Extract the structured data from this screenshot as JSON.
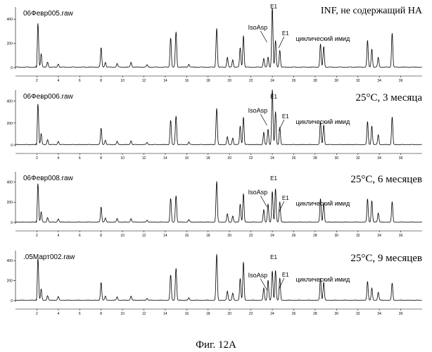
{
  "figure_caption": "Фиг. 12А",
  "chart_data": [
    {
      "type": "line",
      "file_label": "06Февр005.raw",
      "condition_label": "INF, не содержащий НА",
      "annotations": [
        "IsoAsp",
        "E1",
        "E1",
        "циклический имид"
      ],
      "y_ticks": [
        "400",
        "200",
        "0"
      ],
      "x_ticks": [
        "2",
        "4",
        "6",
        "8",
        "10",
        "12",
        "14",
        "16",
        "18",
        "20",
        "22",
        "24",
        "26",
        "28",
        "30",
        "32",
        "34",
        "36"
      ],
      "xlim": [
        0,
        38
      ],
      "ylim": [
        0,
        500
      ],
      "peaks": [
        {
          "x": 2.1,
          "y": 360
        },
        {
          "x": 2.4,
          "y": 110
        },
        {
          "x": 3.0,
          "y": 40
        },
        {
          "x": 4.0,
          "y": 25
        },
        {
          "x": 8.0,
          "y": 160
        },
        {
          "x": 8.4,
          "y": 40
        },
        {
          "x": 9.5,
          "y": 30
        },
        {
          "x": 10.8,
          "y": 40
        },
        {
          "x": 12.3,
          "y": 20
        },
        {
          "x": 14.5,
          "y": 240
        },
        {
          "x": 15.0,
          "y": 290
        },
        {
          "x": 16.2,
          "y": 25
        },
        {
          "x": 18.8,
          "y": 320
        },
        {
          "x": 19.8,
          "y": 80
        },
        {
          "x": 20.3,
          "y": 60
        },
        {
          "x": 21.0,
          "y": 160
        },
        {
          "x": 21.3,
          "y": 260
        },
        {
          "x": 23.2,
          "y": 70
        },
        {
          "x": 23.6,
          "y": 80
        },
        {
          "x": 24.0,
          "y": 490
        },
        {
          "x": 24.3,
          "y": 220
        },
        {
          "x": 24.7,
          "y": 140
        },
        {
          "x": 28.5,
          "y": 190
        },
        {
          "x": 28.8,
          "y": 170
        },
        {
          "x": 32.9,
          "y": 220
        },
        {
          "x": 33.3,
          "y": 150
        },
        {
          "x": 33.9,
          "y": 80
        },
        {
          "x": 35.2,
          "y": 280
        }
      ]
    },
    {
      "type": "line",
      "file_label": "06Февр006.raw",
      "condition_label": "25°C, 3 месяца",
      "annotations": [
        "IsoAsp",
        "E1",
        "E1",
        "циклический имид"
      ],
      "y_ticks": [
        "400",
        "200",
        "0"
      ],
      "x_ticks": [
        "2",
        "4",
        "6",
        "8",
        "10",
        "12",
        "14",
        "16",
        "18",
        "20",
        "22",
        "24",
        "26",
        "28",
        "30",
        "32",
        "34",
        "36"
      ],
      "xlim": [
        0,
        38
      ],
      "ylim": [
        0,
        500
      ],
      "peaks": [
        {
          "x": 2.1,
          "y": 370
        },
        {
          "x": 2.4,
          "y": 100
        },
        {
          "x": 3.0,
          "y": 45
        },
        {
          "x": 4.0,
          "y": 30
        },
        {
          "x": 8.0,
          "y": 150
        },
        {
          "x": 8.4,
          "y": 40
        },
        {
          "x": 9.5,
          "y": 30
        },
        {
          "x": 10.8,
          "y": 35
        },
        {
          "x": 12.3,
          "y": 20
        },
        {
          "x": 14.5,
          "y": 220
        },
        {
          "x": 15.0,
          "y": 260
        },
        {
          "x": 16.2,
          "y": 25
        },
        {
          "x": 18.8,
          "y": 330
        },
        {
          "x": 19.8,
          "y": 70
        },
        {
          "x": 20.3,
          "y": 60
        },
        {
          "x": 21.0,
          "y": 170
        },
        {
          "x": 21.3,
          "y": 250
        },
        {
          "x": 23.2,
          "y": 110
        },
        {
          "x": 23.6,
          "y": 140
        },
        {
          "x": 24.0,
          "y": 500
        },
        {
          "x": 24.3,
          "y": 300
        },
        {
          "x": 24.7,
          "y": 160
        },
        {
          "x": 28.5,
          "y": 210
        },
        {
          "x": 28.8,
          "y": 180
        },
        {
          "x": 32.9,
          "y": 210
        },
        {
          "x": 33.3,
          "y": 170
        },
        {
          "x": 33.9,
          "y": 90
        },
        {
          "x": 35.2,
          "y": 250
        }
      ]
    },
    {
      "type": "line",
      "file_label": "06Февр008.raw",
      "condition_label": "25°C, 6 месяцев",
      "annotations": [
        "IsoAsp",
        "E1",
        "E1",
        "циклический имид"
      ],
      "y_ticks": [
        "400",
        "200",
        "0"
      ],
      "x_ticks": [
        "2",
        "4",
        "6",
        "8",
        "10",
        "12",
        "14",
        "16",
        "18",
        "20",
        "22",
        "24",
        "26",
        "28",
        "30",
        "32",
        "34",
        "36"
      ],
      "xlim": [
        0,
        38
      ],
      "ylim": [
        0,
        500
      ],
      "peaks": [
        {
          "x": 2.1,
          "y": 380
        },
        {
          "x": 2.4,
          "y": 100
        },
        {
          "x": 3.0,
          "y": 45
        },
        {
          "x": 4.0,
          "y": 30
        },
        {
          "x": 8.0,
          "y": 150
        },
        {
          "x": 8.4,
          "y": 40
        },
        {
          "x": 9.5,
          "y": 35
        },
        {
          "x": 10.8,
          "y": 35
        },
        {
          "x": 12.3,
          "y": 20
        },
        {
          "x": 14.5,
          "y": 230
        },
        {
          "x": 15.0,
          "y": 260
        },
        {
          "x": 16.2,
          "y": 25
        },
        {
          "x": 18.8,
          "y": 400
        },
        {
          "x": 19.8,
          "y": 80
        },
        {
          "x": 20.3,
          "y": 60
        },
        {
          "x": 21.0,
          "y": 180
        },
        {
          "x": 21.3,
          "y": 280
        },
        {
          "x": 23.2,
          "y": 120
        },
        {
          "x": 23.6,
          "y": 180
        },
        {
          "x": 24.0,
          "y": 300
        },
        {
          "x": 24.3,
          "y": 330
        },
        {
          "x": 24.7,
          "y": 200
        },
        {
          "x": 28.5,
          "y": 230
        },
        {
          "x": 28.8,
          "y": 190
        },
        {
          "x": 32.9,
          "y": 230
        },
        {
          "x": 33.3,
          "y": 210
        },
        {
          "x": 33.9,
          "y": 90
        },
        {
          "x": 35.2,
          "y": 200
        }
      ]
    },
    {
      "type": "line",
      "file_label": ".05Март002.raw",
      "condition_label": "25°C, 9 месяцев",
      "annotations": [
        "IsoAsp",
        "E1",
        "E1",
        "циклический имид"
      ],
      "y_ticks": [
        "400",
        "200",
        "0"
      ],
      "x_ticks": [
        "2",
        "4",
        "6",
        "8",
        "10",
        "12",
        "14",
        "16",
        "18",
        "20",
        "22",
        "24",
        "26",
        "28",
        "30",
        "32",
        "34",
        "36"
      ],
      "xlim": [
        0,
        38
      ],
      "ylim": [
        0,
        500
      ],
      "peaks": [
        {
          "x": 2.1,
          "y": 420
        },
        {
          "x": 2.4,
          "y": 110
        },
        {
          "x": 3.0,
          "y": 45
        },
        {
          "x": 4.0,
          "y": 35
        },
        {
          "x": 8.0,
          "y": 180
        },
        {
          "x": 8.4,
          "y": 40
        },
        {
          "x": 9.5,
          "y": 35
        },
        {
          "x": 10.8,
          "y": 40
        },
        {
          "x": 12.3,
          "y": 20
        },
        {
          "x": 14.5,
          "y": 250
        },
        {
          "x": 15.0,
          "y": 320
        },
        {
          "x": 16.2,
          "y": 25
        },
        {
          "x": 18.8,
          "y": 460
        },
        {
          "x": 19.8,
          "y": 90
        },
        {
          "x": 20.3,
          "y": 70
        },
        {
          "x": 21.0,
          "y": 220
        },
        {
          "x": 21.3,
          "y": 380
        },
        {
          "x": 23.2,
          "y": 120
        },
        {
          "x": 23.6,
          "y": 200
        },
        {
          "x": 24.0,
          "y": 290
        },
        {
          "x": 24.3,
          "y": 300
        },
        {
          "x": 24.7,
          "y": 220
        },
        {
          "x": 28.5,
          "y": 220
        },
        {
          "x": 28.8,
          "y": 180
        },
        {
          "x": 32.9,
          "y": 190
        },
        {
          "x": 33.3,
          "y": 120
        },
        {
          "x": 33.9,
          "y": 80
        },
        {
          "x": 35.2,
          "y": 170
        }
      ]
    }
  ]
}
